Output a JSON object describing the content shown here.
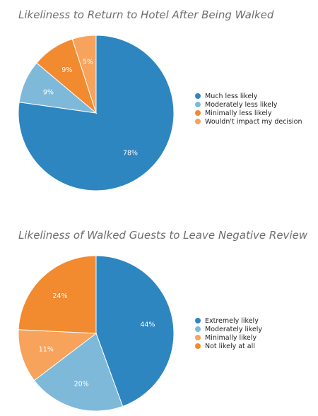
{
  "chart_data": [
    {
      "type": "pie",
      "title": "Likeliness to Return to Hotel After Being Walked",
      "categories": [
        "Much less likely",
        "Moderately less likely",
        "Minimally less likely",
        "Wouldn't impact my decision"
      ],
      "values": [
        78,
        9,
        9,
        5
      ],
      "labels": [
        "78%",
        "9%",
        "9%",
        "5%"
      ],
      "colors": [
        "#2e86c1",
        "#7fb9da",
        "#f28a30",
        "#f7a35c"
      ],
      "start_angle": "12 o'clock, clockwise",
      "legend_position": "right"
    },
    {
      "type": "pie",
      "title": "Likeliness of Walked Guests to Leave Negative Review",
      "categories": [
        "Extremely likely",
        "Moderately likely",
        "Minimally likely",
        "Not likely at all"
      ],
      "values": [
        44,
        20,
        11,
        24
      ],
      "labels": [
        "44%",
        "20%",
        "11%",
        "24%"
      ],
      "colors": [
        "#2e86c1",
        "#7fb9da",
        "#f7a35c",
        "#f28a30"
      ],
      "start_angle": "12 o'clock, clockwise",
      "legend_position": "right"
    }
  ]
}
